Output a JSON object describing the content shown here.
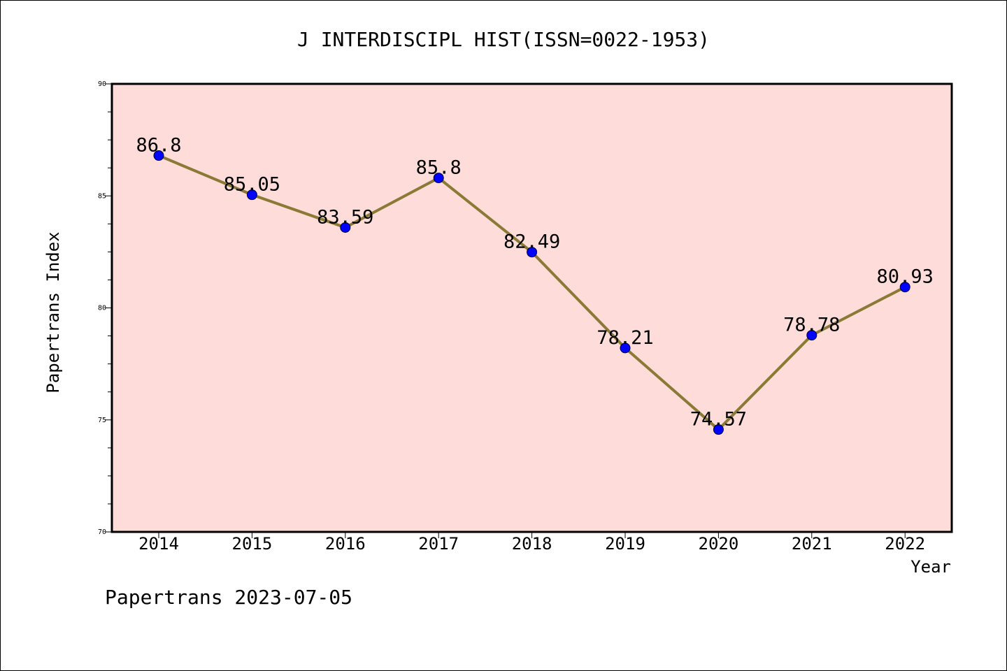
{
  "chart_data": {
    "type": "line",
    "title": "J INTERDISCIPL HIST(ISSN=0022-1953)",
    "xlabel": "Year",
    "ylabel": "Papertrans Index",
    "x": [
      "2014",
      "2015",
      "2016",
      "2017",
      "2018",
      "2019",
      "2020",
      "2021",
      "2022"
    ],
    "y_ticks": [
      "70",
      "75",
      "80",
      "85",
      "90"
    ],
    "data_labels": [
      "86.8",
      "85.05",
      "83.59",
      "85.8",
      "82.49",
      "78.21",
      "74.57",
      "78.78",
      "80.93"
    ],
    "series": [
      {
        "values": [
          86.8,
          85.05,
          83.59,
          85.8,
          82.49,
          78.21,
          74.57,
          78.78,
          80.93
        ]
      }
    ],
    "ylim": [
      70,
      90
    ],
    "grid": false,
    "footer": "Papertrans 2023-07-05",
    "colors": {
      "plot_background": "#fddcda",
      "line": "#8b7a35",
      "marker": "#0000ff",
      "axes": "#000000"
    }
  }
}
